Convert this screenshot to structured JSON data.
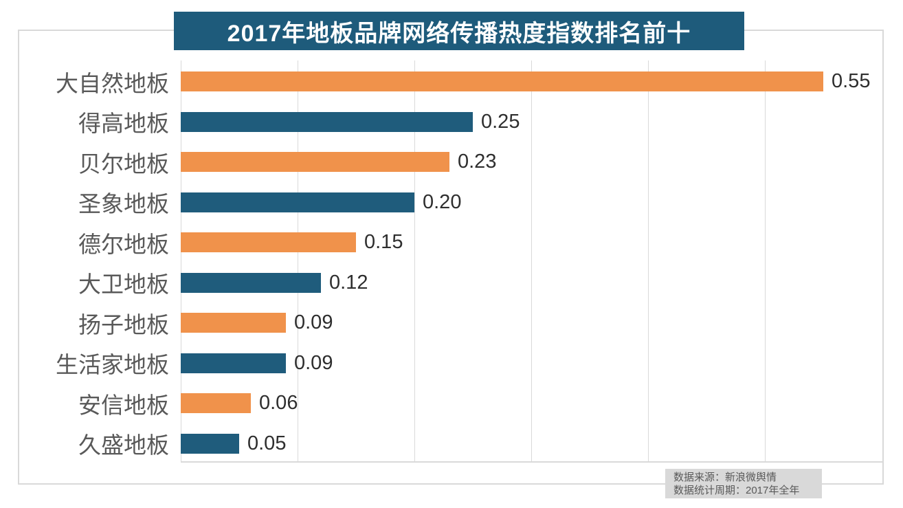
{
  "title": "2017年地板品牌网络传播热度指数排名前十",
  "source": {
    "line1": "数据来源：新浪微舆情",
    "line2": "数据统计周期：2017年全年"
  },
  "colors": {
    "orange_bar": "#F0924B",
    "blue_bar": "#1F5C7C",
    "title_background": "#1E5B7B",
    "title_text": "#FFFFFF",
    "gridline": "#D9D9D9",
    "category_label": "#595959",
    "value_label": "#2E2E2E",
    "footer_background": "#D9D9D9",
    "footer_text": "#595959"
  },
  "chart_data": {
    "type": "bar",
    "orientation": "horizontal",
    "title": "2017年地板品牌网络传播热度指数排名前十",
    "categories": [
      "大自然地板",
      "得高地板",
      "贝尔地板",
      "圣象地板",
      "德尔地板",
      "大卫地板",
      "扬子地板",
      "生活家地板",
      "安信地板",
      "久盛地板"
    ],
    "values": [
      0.55,
      0.25,
      0.23,
      0.2,
      0.15,
      0.12,
      0.09,
      0.09,
      0.06,
      0.05
    ],
    "value_labels": [
      "0.55",
      "0.25",
      "0.23",
      "0.20",
      "0.15",
      "0.12",
      "0.09",
      "0.09",
      "0.06",
      "0.05"
    ],
    "xlabel": "",
    "ylabel": "",
    "xlim": [
      0,
      0.6
    ],
    "x_gridlines": [
      0,
      0.1,
      0.2,
      0.3,
      0.4,
      0.5
    ],
    "grid": true,
    "legend": "none",
    "bar_color_pattern": [
      "#F0924B",
      "#1F5C7C"
    ],
    "annotations": [
      "数据来源：新浪微舆情",
      "数据统计周期：2017年全年"
    ]
  }
}
